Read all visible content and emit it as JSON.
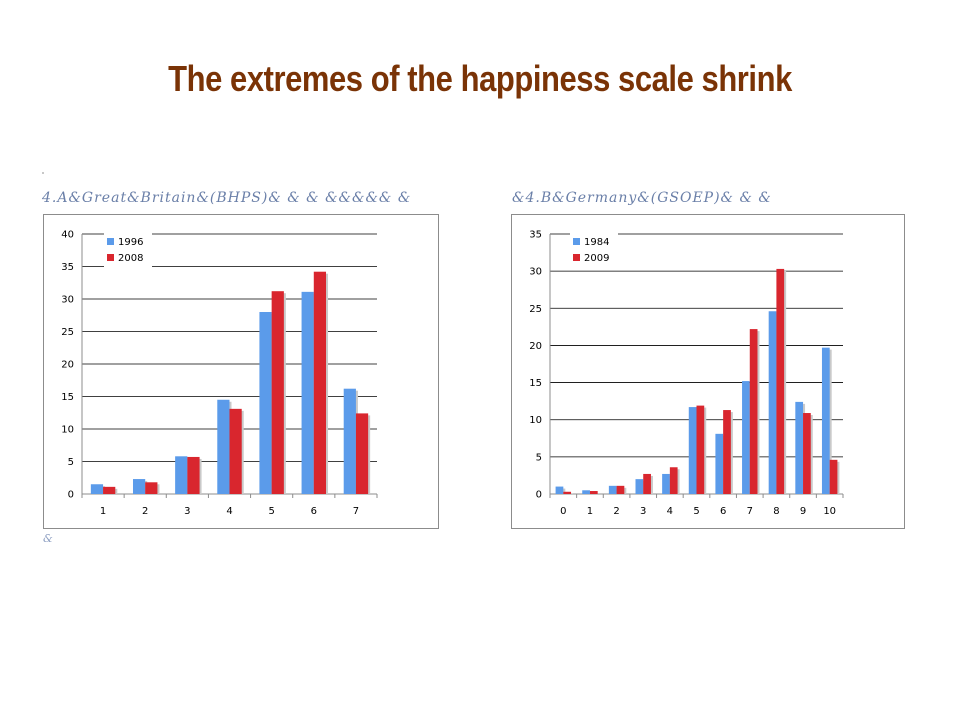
{
  "slide": {
    "title": "The extremes of the happiness scale shrink",
    "caption_a": "4.A&Great&Britain&(BHPS)&    &        &        &&&&&  &",
    "caption_b": "&4.B&Germany&(GSOEP)&    &        &",
    "footmark": "&"
  },
  "colors": {
    "series1": "#5b9bea",
    "series2": "#d9262e",
    "title": "#7a3306"
  },
  "chart_data": [
    {
      "type": "bar",
      "title": "",
      "categories": [
        "1",
        "2",
        "3",
        "4",
        "5",
        "6",
        "7"
      ],
      "series": [
        {
          "name": "1996",
          "values": [
            1.5,
            2.3,
            5.8,
            14.5,
            28,
            31.1,
            16.2
          ]
        },
        {
          "name": "2008",
          "values": [
            1.1,
            1.8,
            5.7,
            13.1,
            31.2,
            34.2,
            12.4
          ]
        }
      ],
      "ylim": [
        0,
        40
      ],
      "yticks": [
        0,
        5,
        10,
        15,
        20,
        25,
        30,
        35,
        40
      ],
      "grid": true,
      "legend": "top-left"
    },
    {
      "type": "bar",
      "title": "",
      "categories": [
        "0",
        "1",
        "2",
        "3",
        "4",
        "5",
        "6",
        "7",
        "8",
        "9",
        "10"
      ],
      "series": [
        {
          "name": "1984",
          "values": [
            1.0,
            0.5,
            1.1,
            2.0,
            2.7,
            11.7,
            8.1,
            15.2,
            24.6,
            12.4,
            19.7
          ]
        },
        {
          "name": "2009",
          "values": [
            0.3,
            0.4,
            1.1,
            2.7,
            3.6,
            11.9,
            11.3,
            22.2,
            30.3,
            10.9,
            4.6
          ]
        }
      ],
      "ylim": [
        0,
        35
      ],
      "yticks": [
        0,
        5,
        10,
        15,
        20,
        25,
        30,
        35
      ],
      "grid": true,
      "legend": "top-left"
    }
  ]
}
